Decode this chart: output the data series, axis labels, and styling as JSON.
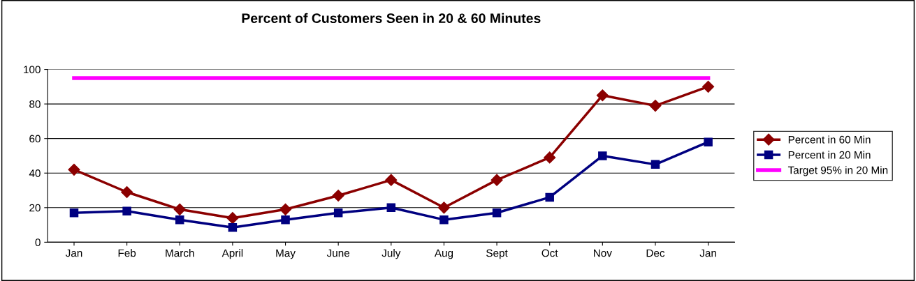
{
  "chart_data": {
    "type": "line",
    "title": "Percent of Customers Seen in 20 & 60 Minutes",
    "categories": [
      "Jan",
      "Feb",
      "March",
      "April",
      "May",
      "June",
      "July",
      "Aug",
      "Sept",
      "Oct",
      "Nov",
      "Dec",
      "Jan"
    ],
    "series": [
      {
        "name": "Percent in 60 Min",
        "color": "#8b0000",
        "marker": "diamond",
        "values": [
          42,
          29,
          19,
          14,
          19,
          27,
          36,
          20,
          36,
          49,
          85,
          79,
          90
        ]
      },
      {
        "name": "Percent in 20 Min",
        "color": "#000080",
        "marker": "square",
        "values": [
          17,
          18,
          13,
          8.5,
          13,
          17,
          20,
          13,
          17,
          26,
          50,
          45,
          58
        ]
      },
      {
        "name": "Target 95% in 20 Min",
        "color": "#ff00ff",
        "marker": "none",
        "values": [
          95,
          95,
          95,
          95,
          95,
          95,
          95,
          95,
          95,
          95,
          95,
          95,
          95
        ]
      }
    ],
    "ylim": [
      0,
      100
    ],
    "yticks": [
      0,
      20,
      40,
      60,
      80,
      100
    ],
    "grid": "y",
    "legend": "right",
    "line_style": "solid"
  }
}
